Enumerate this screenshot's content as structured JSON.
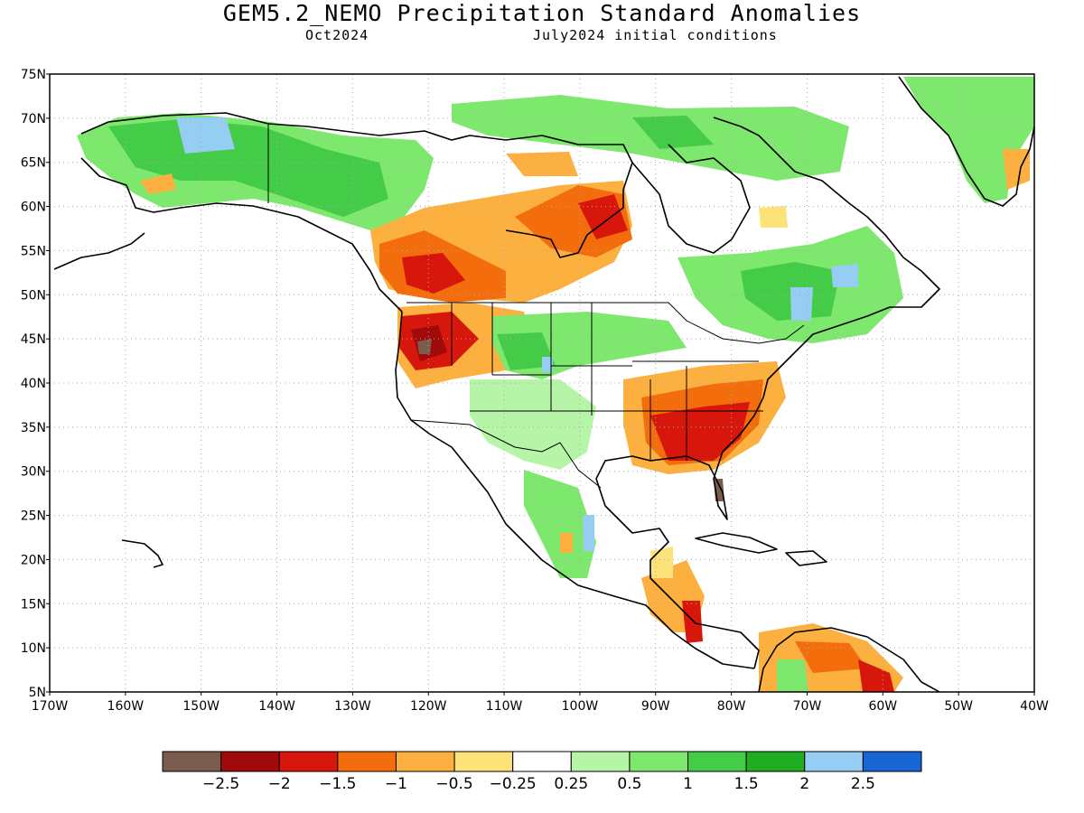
{
  "title": "GEM5.2_NEMO Precipitation Standard Anomalies",
  "subtitle_left": "Oct2024",
  "subtitle_right": "July2024 initial conditions",
  "map": {
    "lon_range": [
      -170,
      -40
    ],
    "lat_range": [
      5,
      75
    ],
    "lat_ticks": [
      "75N",
      "70N",
      "65N",
      "60N",
      "55N",
      "50N",
      "45N",
      "40N",
      "35N",
      "30N",
      "25N",
      "20N",
      "15N",
      "10N",
      "5N"
    ],
    "lon_ticks": [
      "170W",
      "160W",
      "150W",
      "140W",
      "130W",
      "120W",
      "110W",
      "100W",
      "90W",
      "80W",
      "70W",
      "60W",
      "50W",
      "40W"
    ],
    "grid": "dotted"
  },
  "colorbar": {
    "colors": [
      "#7b5b4e",
      "#a10a0a",
      "#d7160c",
      "#f46d0c",
      "#fbb040",
      "#fde27a",
      "#ffffff",
      "#b6f5a8",
      "#7ee86e",
      "#44cb48",
      "#21ad22",
      "#95cdf3",
      "#1865d6"
    ],
    "labels": [
      "−2.5",
      "−2",
      "−1.5",
      "−1",
      "−0.5",
      "−0.25",
      "0.25",
      "0.5",
      "1",
      "1.5",
      "2",
      "2.5"
    ]
  },
  "anomaly_regions": [
    {
      "name": "pacific-northwest",
      "level": -2
    },
    {
      "name": "southeast-us",
      "level": -2
    },
    {
      "name": "florida",
      "level": -2.5
    },
    {
      "name": "western-canada",
      "level": -1.5
    },
    {
      "name": "hudson-bay",
      "level": -1.5
    },
    {
      "name": "alaska",
      "level": 1
    },
    {
      "name": "northern-plains",
      "level": 1.5
    },
    {
      "name": "quebec",
      "level": 1
    },
    {
      "name": "greenland",
      "level": 1
    },
    {
      "name": "central-america",
      "level": -1.5
    },
    {
      "name": "northern-south-america",
      "level": -1
    }
  ]
}
